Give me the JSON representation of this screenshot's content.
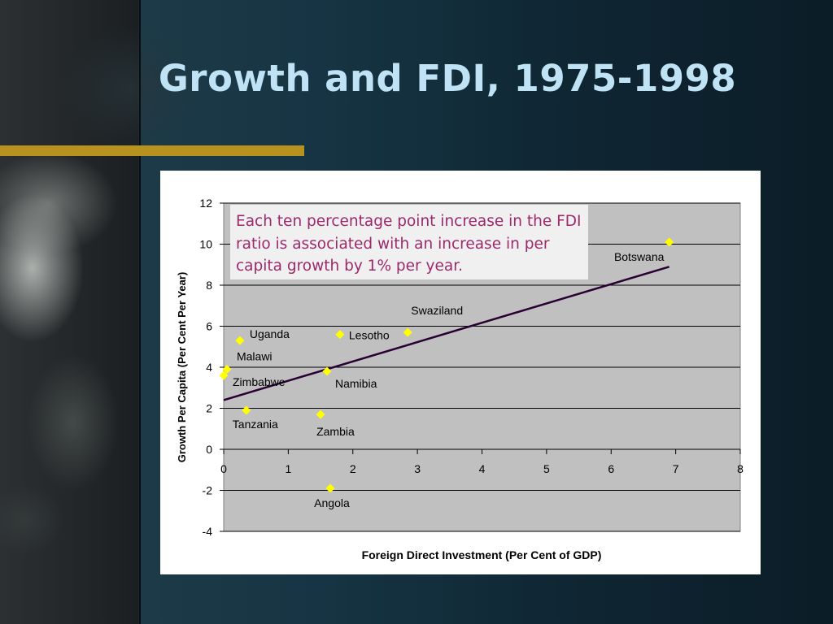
{
  "slide": {
    "title": "Growth and FDI, 1975-1998",
    "colors": {
      "title": "#bfe3f5",
      "accent_bar": "#b8921e",
      "annotation_text": "#9c2a6b"
    }
  },
  "annotation": {
    "text": "Each ten percentage point increase in the FDI ratio is associated with an increase in per capita growth by 1% per year."
  },
  "chart_data": {
    "type": "scatter",
    "title": "",
    "xlabel": "Foreign Direct Investment (Per Cent of GDP)",
    "ylabel": "Growth Per Capita (Per Cent Per Year)",
    "xlim": [
      0,
      8
    ],
    "ylim": [
      -4,
      12
    ],
    "xticks": [
      "0",
      "1",
      "2",
      "3",
      "4",
      "5",
      "6",
      "7",
      "8"
    ],
    "yticks": [
      "12",
      "10",
      "8",
      "6",
      "4",
      "2",
      "0",
      "-2",
      "-4"
    ],
    "grid": "horizontal",
    "plot_background": "#c0c0c0",
    "marker_color": "#ffff00",
    "trendline_color": "#2a0033",
    "points": [
      {
        "label": "Botswana",
        "x": 6.9,
        "y": 10.1
      },
      {
        "label": "Swaziland",
        "x": 2.85,
        "y": 5.7
      },
      {
        "label": "Lesotho",
        "x": 1.8,
        "y": 5.6
      },
      {
        "label": "Uganda",
        "x": 0.25,
        "y": 5.3
      },
      {
        "label": "Malawi",
        "x": 0.05,
        "y": 3.9
      },
      {
        "label": "Zimbabwe",
        "x": 0.0,
        "y": 3.6
      },
      {
        "label": "Namibia",
        "x": 1.6,
        "y": 3.8
      },
      {
        "label": "Tanzania",
        "x": 0.35,
        "y": 1.9
      },
      {
        "label": "Zambia",
        "x": 1.5,
        "y": 1.7
      },
      {
        "label": "Angola",
        "x": 1.65,
        "y": -1.9
      }
    ],
    "trendline": {
      "x": [
        0,
        6.9
      ],
      "y": [
        2.4,
        8.9
      ]
    }
  }
}
